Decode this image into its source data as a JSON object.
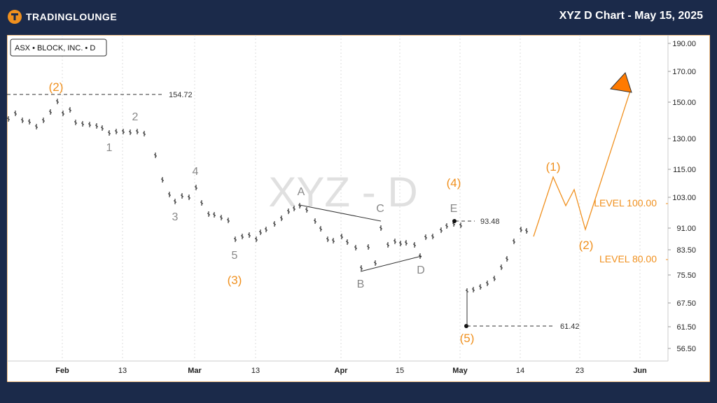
{
  "header": {
    "brand": "TRADINGLOUNGE",
    "title": "XYZ D Chart - May 15, 2025"
  },
  "chart_data": {
    "type": "bar",
    "symbol_label": "ASX • BLOCK, INC. • D",
    "watermark": "XYZ - D",
    "y_ticks": [
      "190.00",
      "170.00",
      "150.00",
      "130.00",
      "115.00",
      "103.00",
      "91.00",
      "83.50",
      "75.50",
      "67.50",
      "61.50",
      "56.50"
    ],
    "x_ticks": [
      "Feb",
      "13",
      "Mar",
      "13",
      "Apr",
      "15",
      "May",
      "14",
      "23",
      "Jun"
    ],
    "price_labels": [
      "154.72",
      "93.48",
      "61.42"
    ],
    "levels": [
      {
        "label": "LEVEL 100.00",
        "value": 100.0
      },
      {
        "label": "LEVEL 80.00",
        "value": 80.0
      }
    ],
    "wave_labels": [
      {
        "text": "(2)",
        "degree": "orange"
      },
      {
        "text": "1",
        "degree": "gray"
      },
      {
        "text": "2",
        "degree": "gray"
      },
      {
        "text": "3",
        "degree": "gray"
      },
      {
        "text": "4",
        "degree": "gray"
      },
      {
        "text": "5",
        "degree": "gray"
      },
      {
        "text": "(3)",
        "degree": "orange"
      },
      {
        "text": "A",
        "degree": "gray"
      },
      {
        "text": "B",
        "degree": "gray"
      },
      {
        "text": "C",
        "degree": "gray"
      },
      {
        "text": "D",
        "degree": "gray"
      },
      {
        "text": "E",
        "degree": "gray"
      },
      {
        "text": "(4)",
        "degree": "orange"
      },
      {
        "text": "(5)",
        "degree": "orange"
      },
      {
        "text": "(1)",
        "degree": "orange"
      },
      {
        "text": "(2)",
        "degree": "orange"
      }
    ],
    "colors": {
      "orange": "#f0901e",
      "gray": "#888888",
      "header_bg": "#1b2a4a",
      "arrow": "#ff7a00"
    }
  }
}
